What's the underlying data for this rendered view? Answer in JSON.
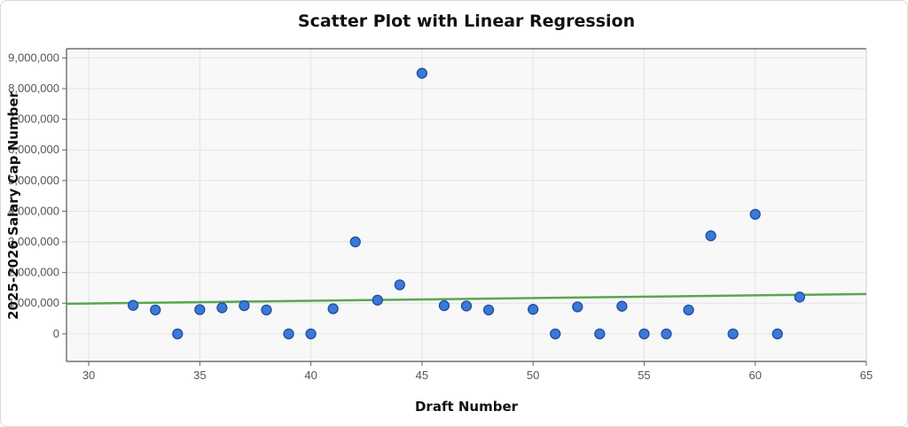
{
  "chart_data": {
    "type": "scatter",
    "title": "Scatter Plot with Linear Regression",
    "xlabel": "Draft Number",
    "ylabel": "2025-2026 Salary Cap Number",
    "xlim": [
      29,
      65
    ],
    "ylim": [
      -900000,
      9300000
    ],
    "xticks": [
      30,
      35,
      40,
      45,
      50,
      55,
      60,
      65
    ],
    "xtick_labels": [
      "30",
      "35",
      "40",
      "45",
      "50",
      "55",
      "60",
      "65"
    ],
    "yticks": [
      0,
      1000000,
      2000000,
      3000000,
      4000000,
      5000000,
      6000000,
      7000000,
      8000000,
      9000000
    ],
    "ytick_labels": [
      "0",
      "1,000,000",
      "2,000,000",
      "3,000,000",
      "4,000,000",
      "5,000,000",
      "6,000,000",
      "7,000,000",
      "8,000,000",
      "9,000,000"
    ],
    "grid": true,
    "points": {
      "x": [
        32,
        33,
        34,
        35,
        36,
        37,
        38,
        39,
        40,
        41,
        42,
        43,
        44,
        45,
        46,
        47,
        48,
        50,
        51,
        52,
        53,
        54,
        55,
        56,
        57,
        58,
        59,
        60,
        61,
        62
      ],
      "y": [
        930000,
        780000,
        0,
        790000,
        850000,
        920000,
        780000,
        0,
        0,
        820000,
        3000000,
        1100000,
        1600000,
        8500000,
        920000,
        910000,
        780000,
        800000,
        0,
        880000,
        0,
        900000,
        0,
        0,
        780000,
        3200000,
        0,
        3900000,
        0,
        1200000
      ],
      "color": "#3b78d8"
    },
    "regression": {
      "x": [
        29,
        65
      ],
      "y": [
        980000,
        1300000
      ],
      "color": "#5aa64f"
    }
  }
}
